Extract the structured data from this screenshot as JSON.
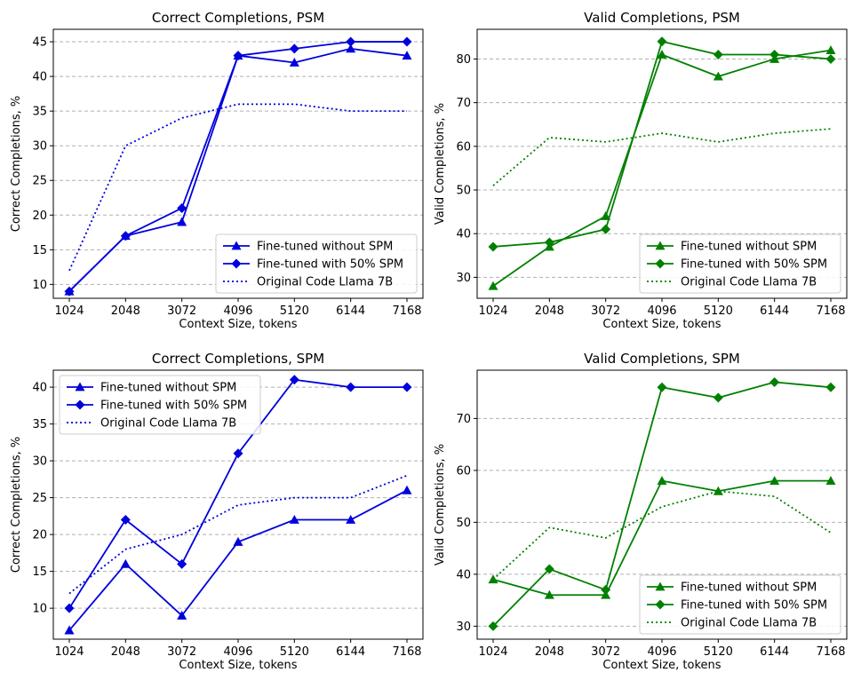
{
  "chart_data": [
    {
      "type": "line",
      "title": "Correct Completions, PSM",
      "xlabel": "Context Size, tokens",
      "ylabel": "Correct Completions, %",
      "x": [
        1024,
        2048,
        3072,
        4096,
        5120,
        6144,
        7168
      ],
      "xticks": [
        1024,
        2048,
        3072,
        4096,
        5120,
        6144,
        7168
      ],
      "yticks": [
        10,
        15,
        20,
        25,
        30,
        35,
        40,
        45
      ],
      "ylim": [
        8,
        46.8
      ],
      "grid": "horizontal",
      "legend_position": "lower-right",
      "color": "#0000dd",
      "series": [
        {
          "name": "Fine-tuned without SPM",
          "marker": "triangle",
          "style": "solid",
          "values": [
            9,
            17,
            19,
            43,
            42,
            44,
            43
          ]
        },
        {
          "name": "Fine-tuned with 50% SPM",
          "marker": "diamond",
          "style": "solid",
          "values": [
            9,
            17,
            21,
            43,
            44,
            45,
            45
          ]
        },
        {
          "name": "Original Code Llama 7B",
          "marker": "none",
          "style": "dotted",
          "values": [
            12,
            30,
            34,
            36,
            36,
            35,
            35
          ]
        }
      ]
    },
    {
      "type": "line",
      "title": "Valid Completions, PSM",
      "xlabel": "Context Size, tokens",
      "ylabel": "Valid Completions, %",
      "x": [
        1024,
        2048,
        3072,
        4096,
        5120,
        6144,
        7168
      ],
      "xticks": [
        1024,
        2048,
        3072,
        4096,
        5120,
        6144,
        7168
      ],
      "yticks": [
        30,
        40,
        50,
        60,
        70,
        80
      ],
      "ylim": [
        25.2,
        86.8
      ],
      "grid": "horizontal",
      "legend_position": "lower-right",
      "color": "#008000",
      "series": [
        {
          "name": "Fine-tuned without SPM",
          "marker": "triangle",
          "style": "solid",
          "values": [
            28,
            37,
            44,
            81,
            76,
            80,
            82
          ]
        },
        {
          "name": "Fine-tuned with 50% SPM",
          "marker": "diamond",
          "style": "solid",
          "values": [
            37,
            38,
            41,
            84,
            81,
            81,
            80
          ]
        },
        {
          "name": "Original Code Llama 7B",
          "marker": "none",
          "style": "dotted",
          "values": [
            51,
            62,
            61,
            63,
            61,
            63,
            64
          ]
        }
      ]
    },
    {
      "type": "line",
      "title": "Correct Completions, SPM",
      "xlabel": "Context Size, tokens",
      "ylabel": "Correct Completions, %",
      "x": [
        1024,
        2048,
        3072,
        4096,
        5120,
        6144,
        7168
      ],
      "xticks": [
        1024,
        2048,
        3072,
        4096,
        5120,
        6144,
        7168
      ],
      "yticks": [
        10,
        15,
        20,
        25,
        30,
        35,
        40
      ],
      "ylim": [
        5.8,
        42.3
      ],
      "grid": "horizontal",
      "legend_position": "upper-left",
      "color": "#0000dd",
      "series": [
        {
          "name": "Fine-tuned without SPM",
          "marker": "triangle",
          "style": "solid",
          "values": [
            7,
            16,
            9,
            19,
            22,
            22,
            26
          ]
        },
        {
          "name": "Fine-tuned with 50% SPM",
          "marker": "diamond",
          "style": "solid",
          "values": [
            10,
            22,
            16,
            31,
            41,
            40,
            40
          ]
        },
        {
          "name": "Original Code Llama 7B",
          "marker": "none",
          "style": "dotted",
          "values": [
            12,
            18,
            20,
            24,
            25,
            25,
            28
          ]
        }
      ]
    },
    {
      "type": "line",
      "title": "Valid Completions, SPM",
      "xlabel": "Context Size, tokens",
      "ylabel": "Valid Completions, %",
      "x": [
        1024,
        2048,
        3072,
        4096,
        5120,
        6144,
        7168
      ],
      "xticks": [
        1024,
        2048,
        3072,
        4096,
        5120,
        6144,
        7168
      ],
      "yticks": [
        30,
        40,
        50,
        60,
        70
      ],
      "ylim": [
        27.5,
        79.3
      ],
      "grid": "horizontal",
      "legend_position": "lower-right",
      "color": "#008000",
      "series": [
        {
          "name": "Fine-tuned without SPM",
          "marker": "triangle",
          "style": "solid",
          "values": [
            39,
            36,
            36,
            58,
            56,
            58,
            58
          ]
        },
        {
          "name": "Fine-tuned with 50% SPM",
          "marker": "diamond",
          "style": "solid",
          "values": [
            30,
            41,
            37,
            76,
            74,
            77,
            76
          ]
        },
        {
          "name": "Original Code Llama 7B",
          "marker": "none",
          "style": "dotted",
          "values": [
            39,
            49,
            47,
            53,
            56,
            55,
            48
          ]
        }
      ]
    }
  ]
}
